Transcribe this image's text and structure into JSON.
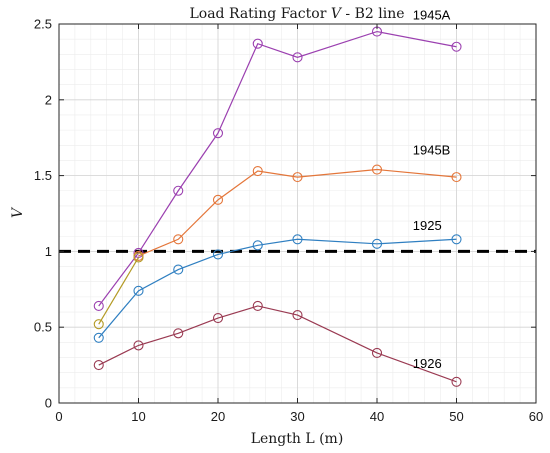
{
  "chart_data": {
    "type": "line",
    "title_prefix": "Load Rating Factor ",
    "title_var": "V",
    "title_suffix": " - B2 line",
    "xlabel": "Length L (m)",
    "ylabel": "V",
    "xlim": [
      0,
      60
    ],
    "ylim": [
      0,
      2.5
    ],
    "xticks": [
      0,
      10,
      20,
      30,
      40,
      50,
      60
    ],
    "yticks": [
      0,
      0.5,
      1,
      1.5,
      2,
      2.5
    ],
    "xtick_labels": [
      "0",
      "10",
      "20",
      "30",
      "40",
      "50",
      "60"
    ],
    "ytick_labels": [
      "0",
      "0.5",
      "1",
      "1.5",
      "2",
      "2.5"
    ],
    "grid": true,
    "minor_grid": true,
    "reference_line": {
      "y": 1,
      "style": "dashed",
      "color": "#000000"
    },
    "x": [
      5,
      10,
      15,
      20,
      25,
      30,
      40,
      50
    ],
    "series": [
      {
        "name": "1945A",
        "color": "#9b40b0",
        "values": [
          0.64,
          0.99,
          1.4,
          1.78,
          2.37,
          2.28,
          2.45,
          2.35
        ]
      },
      {
        "name": "1945B",
        "color": "#e4763a",
        "x": [
          10,
          15,
          20,
          25,
          30,
          40,
          50
        ],
        "values": [
          0.97,
          1.08,
          1.34,
          1.53,
          1.49,
          1.54,
          1.49
        ]
      },
      {
        "name": "",
        "color": "#b49a25",
        "x": [
          5,
          10
        ],
        "values": [
          0.52,
          0.96
        ]
      },
      {
        "name": "1925",
        "color": "#2f7fc1",
        "values": [
          0.43,
          0.74,
          0.88,
          0.98,
          1.04,
          1.08,
          1.05,
          1.08
        ]
      },
      {
        "name": "1926",
        "color": "#9a3a52",
        "values": [
          0.25,
          0.38,
          0.46,
          0.56,
          0.64,
          0.58,
          0.33,
          0.14
        ]
      }
    ]
  }
}
